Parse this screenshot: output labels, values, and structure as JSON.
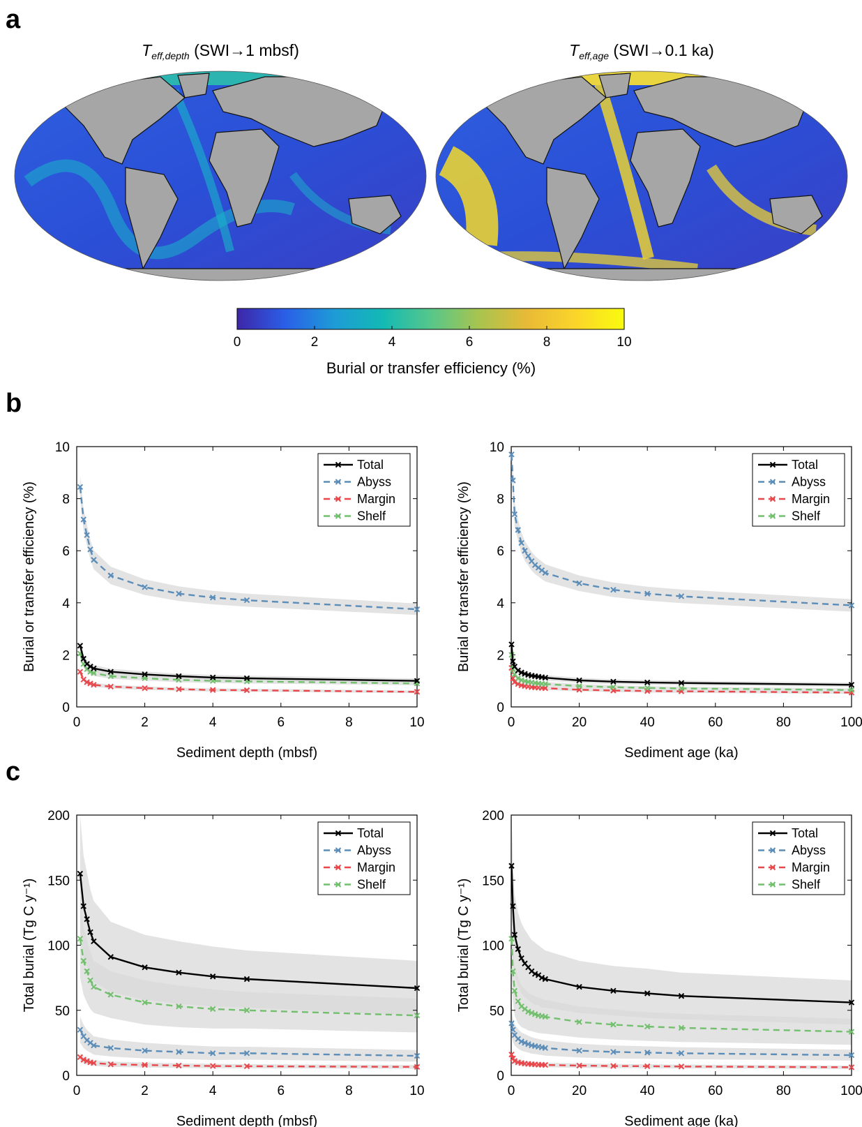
{
  "panels": {
    "a": "a",
    "b": "b",
    "c": "c"
  },
  "maps": [
    {
      "title_main": "T",
      "title_sub": "eff,depth",
      "title_rest": " (SWI→1 mbsf)"
    },
    {
      "title_main": "T",
      "title_sub": "eff,age",
      "title_rest": " (SWI→0.1 ka)"
    }
  ],
  "colorbar": {
    "label": "Burial or transfer efficiency (%)",
    "range": [
      0,
      10
    ],
    "ticks": [
      "0",
      "2",
      "4",
      "6",
      "8",
      "10"
    ],
    "colormap": [
      "#3e26a8",
      "#2a5fe8",
      "#1e9bd6",
      "#13b9b5",
      "#56c78a",
      "#a8c44f",
      "#e8ba36",
      "#fbd52a",
      "#f9fb0e"
    ]
  },
  "land_color": "#a6a6a6",
  "colors": {
    "total": "#000000",
    "abyss": "#5b8db8",
    "margin": "#e8474b",
    "shelf": "#72bf6e",
    "band": "#d9d9d9"
  },
  "chart_data": [
    {
      "id": "b-depth",
      "type": "line",
      "xlabel": "Sediment depth (mbsf)",
      "ylabel": "Burial or transfer efficiency (%)",
      "xlim": [
        0,
        10
      ],
      "ylim": [
        0,
        10
      ],
      "xticks": [
        0,
        2,
        4,
        6,
        8,
        10
      ],
      "yticks": [
        0,
        2,
        4,
        6,
        8,
        10
      ],
      "legend": "top-right",
      "x": [
        0.1,
        0.2,
        0.3,
        0.4,
        0.5,
        1,
        2,
        3,
        4,
        5,
        10
      ],
      "series": [
        {
          "name": "Total",
          "key": "total",
          "dash": false,
          "values": [
            2.35,
            1.85,
            1.65,
            1.55,
            1.48,
            1.35,
            1.25,
            1.18,
            1.13,
            1.1,
            1.0
          ],
          "band": [
            0.2,
            0.17,
            0.15,
            0.14,
            0.13,
            0.12,
            0.11,
            0.1,
            0.1,
            0.1,
            0.09
          ]
        },
        {
          "name": "Abyss",
          "key": "abyss",
          "dash": true,
          "values": [
            8.45,
            7.2,
            6.6,
            6.05,
            5.65,
            5.05,
            4.6,
            4.35,
            4.2,
            4.1,
            3.75
          ],
          "band": [
            0.45,
            0.42,
            0.4,
            0.38,
            0.36,
            0.34,
            0.3,
            0.28,
            0.26,
            0.25,
            0.22
          ]
        },
        {
          "name": "Margin",
          "key": "margin",
          "dash": true,
          "values": [
            1.35,
            1.05,
            0.95,
            0.9,
            0.85,
            0.78,
            0.72,
            0.68,
            0.65,
            0.64,
            0.58
          ],
          "band": [
            0.12,
            0.1,
            0.09,
            0.08,
            0.08,
            0.07,
            0.07,
            0.06,
            0.06,
            0.06,
            0.05
          ]
        },
        {
          "name": "Shelf",
          "key": "shelf",
          "dash": true,
          "values": [
            2.05,
            1.65,
            1.45,
            1.35,
            1.3,
            1.18,
            1.1,
            1.04,
            1.0,
            0.98,
            0.9
          ],
          "band": [
            0.15,
            0.13,
            0.12,
            0.11,
            0.11,
            0.1,
            0.09,
            0.09,
            0.08,
            0.08,
            0.07
          ]
        }
      ]
    },
    {
      "id": "b-age",
      "type": "line",
      "xlabel": "Sediment age (ka)",
      "ylabel": "Burial or transfer efficiency (%)",
      "xlim": [
        0,
        100
      ],
      "ylim": [
        0,
        10
      ],
      "xticks": [
        0,
        20,
        40,
        60,
        80,
        100
      ],
      "yticks": [
        0,
        2,
        4,
        6,
        8,
        10
      ],
      "legend": "top-right",
      "x": [
        0.1,
        0.5,
        1,
        2,
        3,
        4,
        5,
        6,
        7,
        8,
        9,
        10,
        20,
        30,
        40,
        50,
        100
      ],
      "series": [
        {
          "name": "Total",
          "key": "total",
          "dash": false,
          "values": [
            2.4,
            1.75,
            1.55,
            1.4,
            1.32,
            1.27,
            1.23,
            1.2,
            1.18,
            1.16,
            1.14,
            1.12,
            1.02,
            0.97,
            0.94,
            0.92,
            0.85
          ],
          "band": [
            0.2,
            0.16,
            0.14,
            0.13,
            0.12,
            0.12,
            0.11,
            0.11,
            0.11,
            0.11,
            0.1,
            0.1,
            0.1,
            0.09,
            0.09,
            0.09,
            0.08
          ]
        },
        {
          "name": "Abyss",
          "key": "abyss",
          "dash": true,
          "values": [
            9.7,
            8.7,
            7.4,
            6.8,
            6.3,
            6.0,
            5.8,
            5.6,
            5.45,
            5.35,
            5.25,
            5.15,
            4.75,
            4.5,
            4.35,
            4.25,
            3.9
          ],
          "band": [
            0.5,
            0.48,
            0.45,
            0.42,
            0.4,
            0.38,
            0.37,
            0.36,
            0.35,
            0.34,
            0.34,
            0.33,
            0.3,
            0.28,
            0.27,
            0.26,
            0.24
          ]
        },
        {
          "name": "Margin",
          "key": "margin",
          "dash": true,
          "values": [
            1.5,
            1.1,
            0.95,
            0.88,
            0.83,
            0.8,
            0.78,
            0.76,
            0.75,
            0.74,
            0.73,
            0.72,
            0.66,
            0.63,
            0.61,
            0.6,
            0.55
          ],
          "band": [
            0.12,
            0.1,
            0.09,
            0.08,
            0.08,
            0.08,
            0.07,
            0.07,
            0.07,
            0.07,
            0.07,
            0.07,
            0.06,
            0.06,
            0.06,
            0.06,
            0.05
          ]
        },
        {
          "name": "Shelf",
          "key": "shelf",
          "dash": true,
          "values": [
            2.0,
            1.45,
            1.25,
            1.1,
            1.03,
            0.99,
            0.96,
            0.94,
            0.92,
            0.9,
            0.89,
            0.88,
            0.8,
            0.76,
            0.73,
            0.71,
            0.65
          ],
          "band": [
            0.15,
            0.12,
            0.11,
            0.1,
            0.09,
            0.09,
            0.09,
            0.09,
            0.08,
            0.08,
            0.08,
            0.08,
            0.08,
            0.07,
            0.07,
            0.07,
            0.06
          ]
        }
      ]
    },
    {
      "id": "c-depth",
      "type": "line",
      "xlabel": "Sediment depth (mbsf)",
      "ylabel": "Total burial (Tg C y⁻¹)",
      "xlim": [
        0,
        10
      ],
      "ylim": [
        0,
        200
      ],
      "xticks": [
        0,
        2,
        4,
        6,
        8,
        10
      ],
      "yticks": [
        0,
        50,
        100,
        150,
        200
      ],
      "legend": "top-right",
      "x": [
        0.1,
        0.2,
        0.3,
        0.4,
        0.5,
        1,
        2,
        3,
        4,
        5,
        10
      ],
      "series": [
        {
          "name": "Total",
          "key": "total",
          "dash": false,
          "values": [
            155,
            130,
            120,
            110,
            103,
            91,
            83,
            79,
            76,
            74,
            67
          ],
          "band": [
            45,
            39,
            36,
            33,
            31,
            27,
            25,
            24,
            23,
            22,
            21
          ]
        },
        {
          "name": "Abyss",
          "key": "abyss",
          "dash": true,
          "values": [
            35,
            30,
            27,
            25,
            23,
            21,
            19,
            18,
            17,
            17,
            15
          ],
          "band": [
            10,
            9,
            8,
            7.5,
            7,
            6.5,
            6,
            5.5,
            5.2,
            5,
            4.5
          ]
        },
        {
          "name": "Margin",
          "key": "margin",
          "dash": true,
          "values": [
            14,
            12,
            11,
            10,
            9.5,
            8.5,
            8,
            7.5,
            7.2,
            7,
            6.5
          ],
          "band": [
            3,
            2.7,
            2.5,
            2.3,
            2.2,
            2,
            1.9,
            1.8,
            1.7,
            1.6,
            1.5
          ]
        },
        {
          "name": "Shelf",
          "key": "shelf",
          "dash": true,
          "values": [
            105,
            88,
            80,
            73,
            68,
            62,
            56,
            53,
            51,
            50,
            46
          ],
          "band": [
            30,
            26,
            24,
            22,
            20,
            18,
            17,
            16,
            15,
            14,
            13
          ]
        }
      ]
    },
    {
      "id": "c-age",
      "type": "line",
      "xlabel": "Sediment age (ka)",
      "ylabel": "Total burial (Tg C y⁻¹)",
      "xlim": [
        0,
        100
      ],
      "ylim": [
        0,
        200
      ],
      "xticks": [
        0,
        20,
        40,
        60,
        80,
        100
      ],
      "yticks": [
        0,
        50,
        100,
        150,
        200
      ],
      "legend": "top-right",
      "x": [
        0.1,
        0.5,
        1,
        2,
        3,
        4,
        5,
        6,
        7,
        8,
        9,
        10,
        20,
        30,
        40,
        50,
        100
      ],
      "series": [
        {
          "name": "Total",
          "key": "total",
          "dash": false,
          "values": [
            161,
            130,
            108,
            97,
            90,
            86,
            83,
            80,
            78,
            77,
            75,
            74,
            68,
            65,
            63,
            61,
            56
          ],
          "band": [
            40,
            36,
            31,
            28,
            27,
            26,
            25,
            24,
            24,
            23,
            23,
            22,
            20,
            19,
            19,
            18,
            17
          ]
        },
        {
          "name": "Abyss",
          "key": "abyss",
          "dash": true,
          "values": [
            40,
            35,
            31,
            28,
            26,
            25,
            24,
            23,
            22.5,
            22,
            21.5,
            21,
            19,
            18,
            17.5,
            17,
            15.5
          ],
          "band": [
            10,
            9,
            8,
            7.5,
            7,
            6.8,
            6.5,
            6.3,
            6.1,
            6,
            5.9,
            5.8,
            5.3,
            5,
            4.8,
            4.6,
            4.2
          ]
        },
        {
          "name": "Margin",
          "key": "margin",
          "dash": true,
          "values": [
            16,
            13,
            11,
            10,
            9.5,
            9,
            8.8,
            8.6,
            8.4,
            8.2,
            8.1,
            8,
            7.5,
            7.2,
            7,
            6.8,
            6.2
          ],
          "band": [
            3,
            2.7,
            2.5,
            2.3,
            2.2,
            2.1,
            2,
            2,
            1.9,
            1.9,
            1.8,
            1.8,
            1.7,
            1.6,
            1.5,
            1.5,
            1.3
          ]
        },
        {
          "name": "Shelf",
          "key": "shelf",
          "dash": true,
          "values": [
            105,
            80,
            65,
            57,
            53,
            51,
            49,
            48,
            47,
            46,
            45.5,
            45,
            41,
            39,
            37.5,
            36.5,
            33.5
          ],
          "band": [
            28,
            23,
            19,
            17,
            16,
            15,
            14.5,
            14,
            13.8,
            13.5,
            13.3,
            13,
            12,
            11.5,
            11,
            10.8,
            10
          ]
        }
      ]
    }
  ]
}
